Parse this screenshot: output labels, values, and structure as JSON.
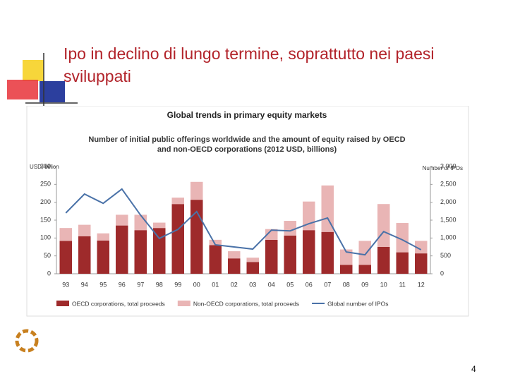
{
  "slide": {
    "title": "Ipo in declino di lungo termine, soprattutto nei paesi sviluppati",
    "page_number": "4"
  },
  "chart_data": {
    "type": "bar",
    "stacked": true,
    "title": "Global trends in primary equity markets",
    "subtitle": [
      "Number of initial public offerings worldwide and the amount of equity raised by OECD",
      "and non-OECD corporations (2012 USD, billions)"
    ],
    "y_label": "USD, billion",
    "y2_label": "Number of IPOs",
    "categories": [
      "93",
      "94",
      "95",
      "96",
      "97",
      "98",
      "99",
      "00",
      "01",
      "02",
      "03",
      "04",
      "05",
      "06",
      "07",
      "08",
      "09",
      "10",
      "11",
      "12"
    ],
    "series": [
      {
        "name": "OECD corporations, total proceeds",
        "color": "#9e2a2b",
        "type": "bar",
        "values": [
          92,
          105,
          93,
          135,
          122,
          128,
          195,
          207,
          80,
          43,
          33,
          95,
          107,
          122,
          117,
          25,
          25,
          75,
          60,
          57
        ]
      },
      {
        "name": "Non-OECD corporations, total proceeds",
        "color": "#e9b5b5",
        "type": "bar",
        "values": [
          36,
          32,
          20,
          30,
          43,
          15,
          18,
          50,
          15,
          20,
          12,
          30,
          41,
          80,
          130,
          43,
          67,
          120,
          82,
          35
        ]
      },
      {
        "name": "Global number of IPOs",
        "color": "#4a72a8",
        "type": "line",
        "axis": "y2",
        "values": [
          1700,
          2230,
          1970,
          2370,
          1640,
          990,
          1240,
          1740,
          810,
          750,
          690,
          1220,
          1200,
          1400,
          1560,
          610,
          530,
          1180,
          950,
          670
        ]
      }
    ],
    "ylim": [
      0,
      300
    ],
    "yticks": [
      0,
      50,
      100,
      150,
      200,
      250,
      300
    ],
    "y2lim": [
      0,
      3000
    ],
    "y2ticks": [
      0,
      500,
      {
        "value": 1000,
        "label": "1,000"
      },
      {
        "value": 1500,
        "label": "1,500"
      },
      {
        "value": 2000,
        "label": "2,000"
      },
      {
        "value": 2500,
        "label": "2,500"
      },
      {
        "value": 3000,
        "label": "3,000"
      }
    ],
    "grid": false,
    "legend": "bottom"
  }
}
